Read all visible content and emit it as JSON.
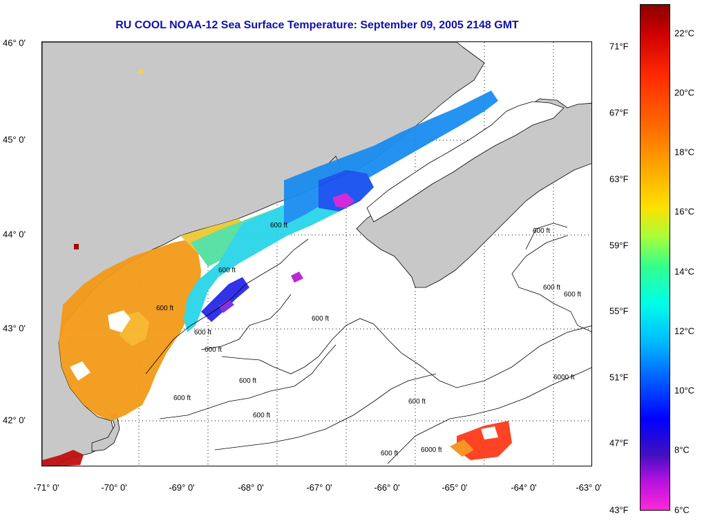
{
  "title": "RU COOL  NOAA-12  Sea Surface Temperature:  September 09, 2005 2148 GMT",
  "map": {
    "lon_ticks": [
      "-71° 0'",
      "-70° 0'",
      "-69° 0'",
      "-68° 0'",
      "-67° 0'",
      "-66° 0'",
      "-65° 0'",
      "-64° 0'",
      "-63° 0'"
    ],
    "lat_ticks": [
      "46° 0'",
      "45° 0'",
      "44° 0'",
      "43° 0'",
      "42° 0'"
    ],
    "contour_labels": [
      "600 ft",
      "600 ft",
      "600 ft",
      "600 ft",
      "600 ft",
      "600 ft",
      "600 ft",
      "600 ft",
      "600 ft",
      "600 ft",
      "600 ft",
      "6000 ft",
      "6000 ft",
      "600 ft",
      "600 ft",
      "600 ft"
    ],
    "colors": {
      "land": "#c8c8c8",
      "ocean_nodata": "#ffffff",
      "coast": "#000000"
    }
  },
  "colorbar": {
    "celsius": [
      "22°C",
      "20°C",
      "18°C",
      "16°C",
      "14°C",
      "12°C",
      "10°C",
      "8°C",
      "6°C"
    ],
    "fahrenheit": [
      "71°F",
      "67°F",
      "63°F",
      "59°F",
      "55°F",
      "51°F",
      "47°F",
      "43°F"
    ]
  }
}
